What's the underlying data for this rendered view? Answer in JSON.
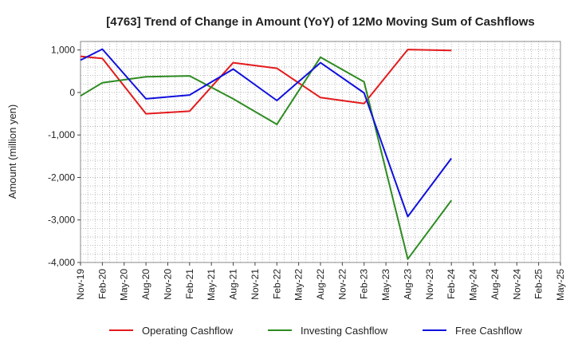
{
  "chart_data": {
    "type": "line",
    "title": "[4763]  Trend of Change in Amount (YoY) of 12Mo Moving Sum of Cashflows",
    "ylabel": "Amount (million yen)",
    "xlabel": "",
    "ylim": [
      -4000,
      1200
    ],
    "yticks": [
      1000,
      0,
      -1000,
      -2000,
      -3000,
      -4000
    ],
    "ytick_labels": [
      "1,000",
      "0",
      "-1,000",
      "-2,000",
      "-3,000",
      "-4,000"
    ],
    "x_months": 66,
    "x_labels": [
      {
        "label": "Nov-19",
        "month": 0
      },
      {
        "label": "Feb-20",
        "month": 3
      },
      {
        "label": "May-20",
        "month": 6
      },
      {
        "label": "Aug-20",
        "month": 9
      },
      {
        "label": "Nov-20",
        "month": 12
      },
      {
        "label": "Feb-21",
        "month": 15
      },
      {
        "label": "May-21",
        "month": 18
      },
      {
        "label": "Aug-21",
        "month": 21
      },
      {
        "label": "Nov-21",
        "month": 24
      },
      {
        "label": "Feb-22",
        "month": 27
      },
      {
        "label": "May-22",
        "month": 30
      },
      {
        "label": "Aug-22",
        "month": 33
      },
      {
        "label": "Nov-22",
        "month": 36
      },
      {
        "label": "Feb-23",
        "month": 39
      },
      {
        "label": "May-23",
        "month": 42
      },
      {
        "label": "Aug-23",
        "month": 45
      },
      {
        "label": "Nov-23",
        "month": 48
      },
      {
        "label": "Feb-24",
        "month": 51
      },
      {
        "label": "May-24",
        "month": 54
      },
      {
        "label": "Aug-24",
        "month": 57
      },
      {
        "label": "Nov-24",
        "month": 60
      },
      {
        "label": "Feb-25",
        "month": 63
      },
      {
        "label": "May-25",
        "month": 66
      }
    ],
    "grid": true,
    "legend_position": "bottom",
    "series": [
      {
        "name": "Operating Cashflow",
        "color": "#e31a1c",
        "points": [
          [
            0,
            850
          ],
          [
            3,
            800
          ],
          [
            9,
            -500
          ],
          [
            15,
            -440
          ],
          [
            21,
            700
          ],
          [
            27,
            570
          ],
          [
            33,
            -120
          ],
          [
            39,
            -260
          ],
          [
            45,
            1010
          ],
          [
            51,
            990
          ]
        ]
      },
      {
        "name": "Investing Cashflow",
        "color": "#2e8b22",
        "points": [
          [
            0,
            -80
          ],
          [
            3,
            230
          ],
          [
            9,
            370
          ],
          [
            15,
            390
          ],
          [
            21,
            -150
          ],
          [
            27,
            -750
          ],
          [
            33,
            830
          ],
          [
            39,
            250
          ],
          [
            45,
            -3920
          ],
          [
            51,
            -2540
          ]
        ]
      },
      {
        "name": "Free Cashflow",
        "color": "#1010dd",
        "points": [
          [
            0,
            760
          ],
          [
            3,
            1020
          ],
          [
            9,
            -150
          ],
          [
            15,
            -60
          ],
          [
            21,
            550
          ],
          [
            27,
            -190
          ],
          [
            33,
            700
          ],
          [
            39,
            -10
          ],
          [
            45,
            -2920
          ],
          [
            51,
            -1550
          ]
        ]
      }
    ]
  }
}
